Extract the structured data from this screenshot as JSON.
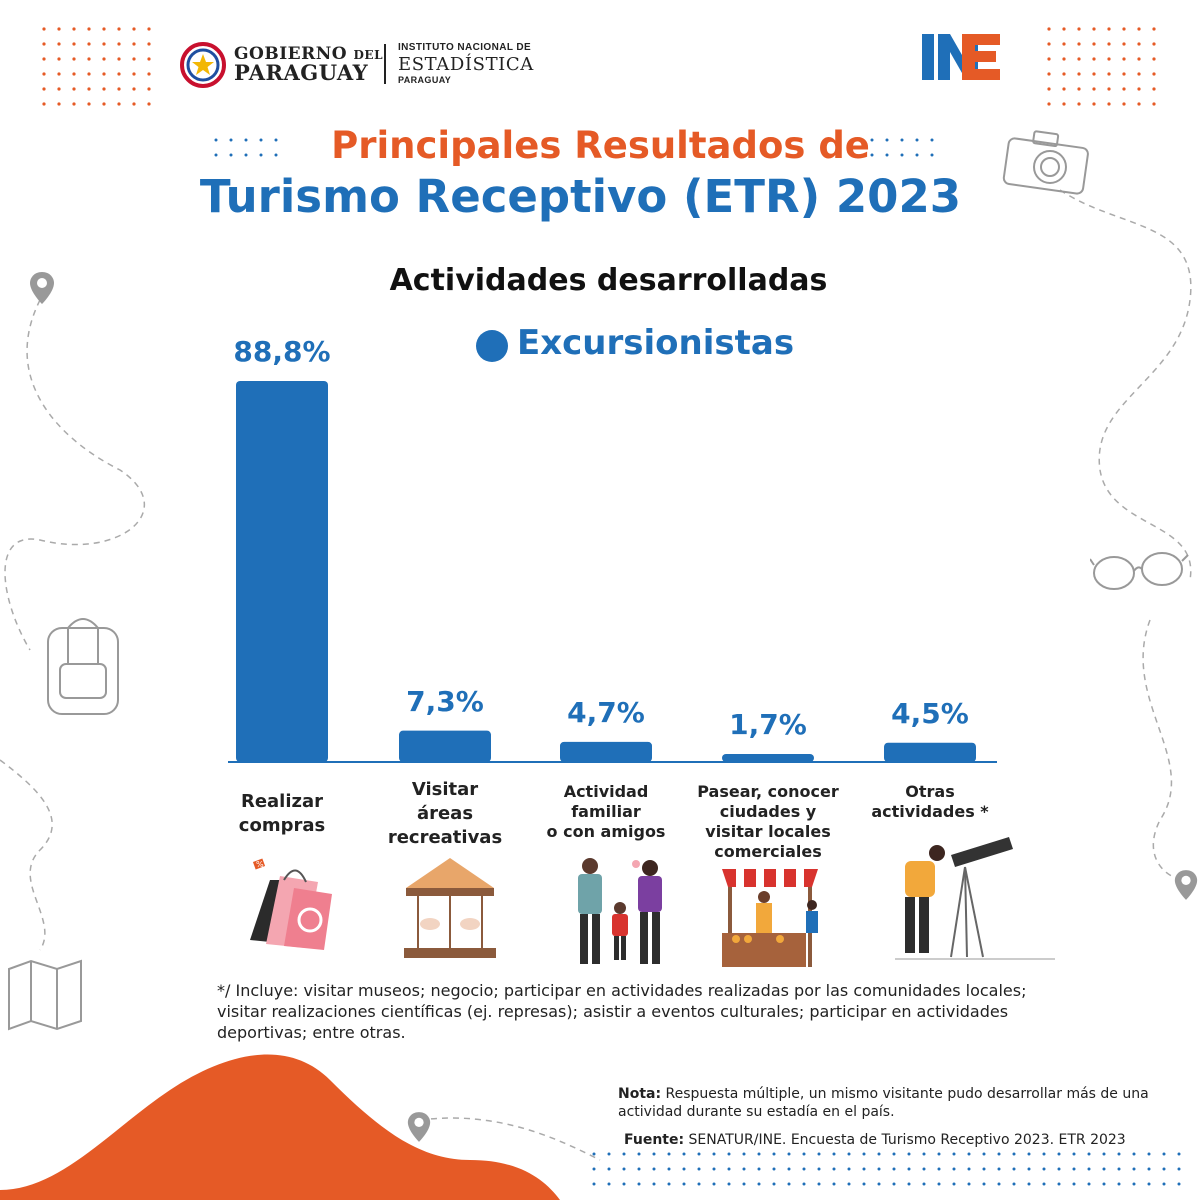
{
  "header": {
    "gov_line1": "GOBIERNO",
    "gov_del": "DEL",
    "gov_line2": "PARAGUAY",
    "ine_line1": "INSTITUTO NACIONAL DE",
    "ine_line2": "ESTADÍSTICA",
    "ine_line3": "PARAGUAY",
    "ine_logo_text": "INE"
  },
  "title_line1": "Principales Resultados de",
  "title_line2": "Turismo Receptivo (ETR) 2023",
  "colors": {
    "orange": "#e55a26",
    "blue": "#1f6fb8",
    "dark_blue": "#1d5fa6"
  },
  "chart_data": {
    "type": "bar",
    "title": "Actividades desarrolladas",
    "legend": "Excursionistas",
    "categories": [
      [
        "Realizar",
        "compras"
      ],
      [
        "Visitar",
        "áreas",
        "recreativas"
      ],
      [
        "Actividad",
        "familiar",
        "o con amigos"
      ],
      [
        "Pasear, conocer",
        "ciudades y",
        "visitar locales",
        "comerciales"
      ],
      [
        "Otras",
        "actividades *"
      ]
    ],
    "values": [
      88.8,
      7.3,
      4.7,
      1.7,
      4.5
    ],
    "value_labels": [
      "88,8%",
      "7,3%",
      "4,7%",
      "1,7%",
      "4,5%"
    ],
    "ylim": [
      0,
      88.8
    ],
    "icons": [
      "shopping-bags-icon",
      "carousel-icon",
      "family-icon",
      "market-stall-icon",
      "telescope-icon"
    ]
  },
  "footnote": "*/ Incluye: visitar museos; negocio; participar en actividades realizadas por las comunidades locales; visitar realizaciones científicas (ej. represas); asistir a eventos culturales; participar en actividades deportivas; entre otras.",
  "nota_label": "Nota:",
  "nota_text": "Respuesta múltiple, un mismo visitante pudo desarrollar más de una actividad durante su estadía en el país.",
  "fuente_label": "Fuente:",
  "fuente_text": "SENATUR/INE. Encuesta de Turismo Receptivo 2023. ETR 2023"
}
